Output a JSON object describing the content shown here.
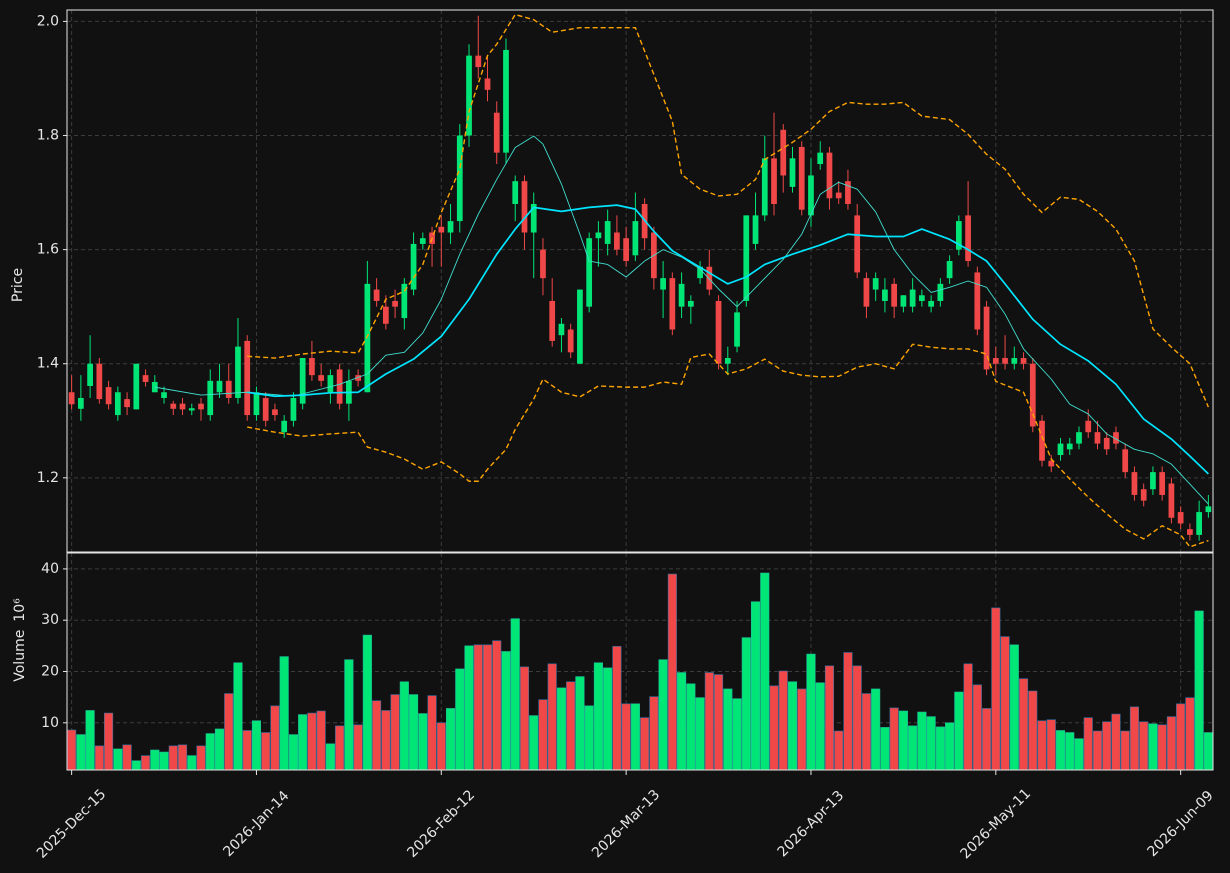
{
  "chart_data": {
    "type": "candlestick",
    "xlim": [
      -0.5,
      123.5
    ],
    "xticks": [
      {
        "value": 0,
        "label": "2025-Dec-15"
      },
      {
        "value": 20,
        "label": "2026-Jan-14"
      },
      {
        "value": 40,
        "label": "2026-Feb-12"
      },
      {
        "value": 60,
        "label": "2026-Mar-13"
      },
      {
        "value": 80,
        "label": "2026-Apr-13"
      },
      {
        "value": 100,
        "label": "2026-May-11"
      },
      {
        "value": 120,
        "label": "2026-Jun-09"
      }
    ],
    "ylabel": "Price",
    "ylim": [
      1.07,
      2.02
    ],
    "yticks": [
      1.2,
      1.4,
      1.6,
      1.8,
      {
        "value": 2,
        "label": "2.0"
      }
    ],
    "grid": true,
    "up_color": "#00e676",
    "down_color": "#f04848",
    "open": [
      1.35,
      1.321,
      1.361,
      1.4,
      1.359,
      1.31,
      1.338,
      1.32,
      1.38,
      1.35,
      1.34,
      1.33,
      1.33,
      1.318,
      1.33,
      1.31,
      1.35,
      1.37,
      1.34,
      1.44,
      1.31,
      1.34,
      1.32,
      1.28,
      1.3,
      1.33,
      1.41,
      1.38,
      1.35,
      1.39,
      1.33,
      1.38,
      1.35,
      1.53,
      1.5,
      1.51,
      1.48,
      1.53,
      1.61,
      1.63,
      1.64,
      1.63,
      1.65,
      1.8,
      1.94,
      1.9,
      1.84,
      1.77,
      1.68,
      1.72,
      1.63,
      1.6,
      1.51,
      1.45,
      1.46,
      1.4,
      1.5,
      1.62,
      1.61,
      1.63,
      1.62,
      1.59,
      1.68,
      1.63,
      1.53,
      1.55,
      1.5,
      1.5,
      1.55,
      1.57,
      1.51,
      1.4,
      1.43,
      1.51,
      1.61,
      1.66,
      1.76,
      1.81,
      1.71,
      1.78,
      1.66,
      1.75,
      1.77,
      1.7,
      1.72,
      1.66,
      1.55,
      1.53,
      1.51,
      1.54,
      1.5,
      1.5,
      1.51,
      1.5,
      1.51,
      1.55,
      1.6,
      1.66,
      1.56,
      1.5,
      1.41,
      1.41,
      1.4,
      1.41,
      1.4,
      1.3,
      1.23,
      1.24,
      1.25,
      1.26,
      1.3,
      1.28,
      1.27,
      1.28,
      1.25,
      1.21,
      1.18,
      1.18,
      1.21,
      1.19,
      1.14,
      1.11,
      1.1,
      1.14
    ],
    "high": [
      1.38,
      1.38,
      1.45,
      1.41,
      1.37,
      1.36,
      1.35,
      1.4,
      1.39,
      1.38,
      1.36,
      1.335,
      1.34,
      1.33,
      1.34,
      1.39,
      1.4,
      1.4,
      1.48,
      1.45,
      1.36,
      1.35,
      1.33,
      1.31,
      1.35,
      1.41,
      1.44,
      1.4,
      1.39,
      1.4,
      1.39,
      1.39,
      1.58,
      1.55,
      1.52,
      1.53,
      1.55,
      1.63,
      1.63,
      1.64,
      1.66,
      1.68,
      1.82,
      1.96,
      2.01,
      1.94,
      1.86,
      1.97,
      1.73,
      1.73,
      1.7,
      1.62,
      1.55,
      1.48,
      1.47,
      1.53,
      1.63,
      1.65,
      1.67,
      1.66,
      1.64,
      1.7,
      1.69,
      1.64,
      1.58,
      1.56,
      1.56,
      1.52,
      1.58,
      1.6,
      1.52,
      1.43,
      1.51,
      1.66,
      1.7,
      1.8,
      1.84,
      1.82,
      1.78,
      1.79,
      1.76,
      1.79,
      1.78,
      1.72,
      1.74,
      1.68,
      1.56,
      1.56,
      1.55,
      1.55,
      1.52,
      1.55,
      1.53,
      1.52,
      1.55,
      1.59,
      1.66,
      1.72,
      1.57,
      1.51,
      1.43,
      1.45,
      1.43,
      1.42,
      1.41,
      1.31,
      1.24,
      1.27,
      1.27,
      1.29,
      1.32,
      1.3,
      1.28,
      1.29,
      1.26,
      1.22,
      1.19,
      1.22,
      1.22,
      1.2,
      1.15,
      1.12,
      1.16,
      1.17
    ],
    "low": [
      1.32,
      1.3,
      1.34,
      1.33,
      1.32,
      1.3,
      1.31,
      1.32,
      1.36,
      1.35,
      1.33,
      1.31,
      1.31,
      1.31,
      1.3,
      1.3,
      1.34,
      1.33,
      1.33,
      1.3,
      1.3,
      1.29,
      1.3,
      1.27,
      1.29,
      1.32,
      1.37,
      1.36,
      1.33,
      1.32,
      1.3,
      1.36,
      1.35,
      1.5,
      1.46,
      1.48,
      1.46,
      1.52,
      1.6,
      1.57,
      1.57,
      1.61,
      1.63,
      1.78,
      1.9,
      1.86,
      1.75,
      1.75,
      1.65,
      1.6,
      1.55,
      1.52,
      1.43,
      1.42,
      1.41,
      1.4,
      1.49,
      1.57,
      1.59,
      1.59,
      1.57,
      1.58,
      1.6,
      1.53,
      1.48,
      1.45,
      1.48,
      1.47,
      1.54,
      1.52,
      1.39,
      1.38,
      1.42,
      1.5,
      1.6,
      1.65,
      1.66,
      1.7,
      1.7,
      1.66,
      1.64,
      1.74,
      1.67,
      1.68,
      1.67,
      1.55,
      1.48,
      1.51,
      1.49,
      1.48,
      1.49,
      1.49,
      1.5,
      1.49,
      1.5,
      1.54,
      1.59,
      1.57,
      1.45,
      1.38,
      1.38,
      1.39,
      1.39,
      1.39,
      1.28,
      1.22,
      1.21,
      1.23,
      1.24,
      1.25,
      1.27,
      1.25,
      1.24,
      1.25,
      1.2,
      1.16,
      1.15,
      1.17,
      1.16,
      1.12,
      1.11,
      1.09,
      1.09,
      1.13
    ],
    "close": [
      1.329,
      1.34,
      1.4,
      1.338,
      1.329,
      1.35,
      1.324,
      1.4,
      1.368,
      1.368,
      1.35,
      1.321,
      1.32,
      1.322,
      1.32,
      1.37,
      1.37,
      1.34,
      1.43,
      1.31,
      1.35,
      1.3,
      1.31,
      1.3,
      1.34,
      1.41,
      1.38,
      1.37,
      1.38,
      1.33,
      1.37,
      1.37,
      1.54,
      1.51,
      1.47,
      1.5,
      1.54,
      1.61,
      1.62,
      1.61,
      1.63,
      1.65,
      1.8,
      1.94,
      1.92,
      1.88,
      1.77,
      1.95,
      1.72,
      1.63,
      1.68,
      1.55,
      1.44,
      1.47,
      1.42,
      1.53,
      1.62,
      1.63,
      1.65,
      1.6,
      1.58,
      1.65,
      1.62,
      1.55,
      1.55,
      1.46,
      1.54,
      1.51,
      1.57,
      1.53,
      1.4,
      1.41,
      1.49,
      1.66,
      1.66,
      1.76,
      1.68,
      1.73,
      1.76,
      1.67,
      1.73,
      1.77,
      1.69,
      1.69,
      1.68,
      1.56,
      1.5,
      1.55,
      1.53,
      1.5,
      1.52,
      1.53,
      1.52,
      1.51,
      1.54,
      1.58,
      1.65,
      1.58,
      1.46,
      1.39,
      1.4,
      1.4,
      1.41,
      1.4,
      1.29,
      1.23,
      1.22,
      1.26,
      1.26,
      1.28,
      1.28,
      1.26,
      1.25,
      1.26,
      1.21,
      1.17,
      1.16,
      1.21,
      1.17,
      1.13,
      1.12,
      1.1,
      1.14,
      1.15
    ],
    "series": [
      {
        "color": "#40e0d0",
        "width": 0.9,
        "dashed": false,
        "x": [
          9,
          14,
          19,
          24,
          29,
          32,
          34,
          36,
          38,
          40,
          42,
          44,
          46,
          48,
          50,
          51,
          53,
          55,
          56,
          58,
          60,
          62,
          64,
          66,
          68,
          70,
          72,
          75,
          77,
          79,
          81,
          83,
          85,
          87,
          89,
          91,
          93,
          95,
          97,
          99,
          101,
          103,
          106,
          108,
          110,
          112,
          115,
          117,
          119,
          121,
          123
        ],
        "values": [
          1.359,
          1.345,
          1.35,
          1.343,
          1.364,
          1.382,
          1.415,
          1.42,
          1.454,
          1.513,
          1.592,
          1.662,
          1.723,
          1.779,
          1.799,
          1.785,
          1.715,
          1.627,
          1.58,
          1.574,
          1.552,
          1.58,
          1.6,
          1.587,
          1.566,
          1.531,
          1.5,
          1.55,
          1.583,
          1.627,
          1.697,
          1.718,
          1.706,
          1.666,
          1.6,
          1.557,
          1.525,
          1.534,
          1.545,
          1.534,
          1.487,
          1.426,
          1.373,
          1.329,
          1.312,
          1.277,
          1.25,
          1.242,
          1.224,
          1.189,
          1.154
        ]
      },
      {
        "color": "#00e5ff",
        "width": 1.7,
        "dashed": false,
        "x": [
          19,
          22,
          25,
          28,
          31,
          34,
          37,
          40,
          43,
          46,
          48,
          50,
          53,
          56,
          59,
          61,
          63,
          65,
          68,
          71,
          73,
          75,
          78,
          81,
          84,
          87,
          90,
          92,
          95,
          97,
          99,
          101,
          104,
          107,
          110,
          113,
          116,
          119,
          121,
          123
        ],
        "values": [
          1.35,
          1.343,
          1.345,
          1.349,
          1.35,
          1.382,
          1.408,
          1.448,
          1.513,
          1.592,
          1.636,
          1.674,
          1.667,
          1.674,
          1.678,
          1.671,
          1.632,
          1.598,
          1.569,
          1.54,
          1.552,
          1.574,
          1.592,
          1.608,
          1.627,
          1.623,
          1.623,
          1.636,
          1.618,
          1.6,
          1.58,
          1.54,
          1.478,
          1.434,
          1.405,
          1.364,
          1.303,
          1.268,
          1.238,
          1.207
        ]
      },
      {
        "color": "#ffa500",
        "width": 1.4,
        "dashed": true,
        "x": [
          19,
          22,
          25,
          28,
          31,
          32,
          34,
          36,
          38,
          40,
          42,
          43,
          45,
          46,
          48,
          50,
          52,
          55,
          58,
          61,
          63,
          65,
          66,
          68,
          70,
          72,
          74,
          75,
          78,
          80,
          82,
          84,
          86,
          88,
          90,
          92,
          95,
          97,
          99,
          101,
          103,
          105,
          107,
          109,
          111,
          113,
          115,
          117,
          119,
          121,
          123
        ],
        "values": [
          1.413,
          1.41,
          1.417,
          1.422,
          1.419,
          1.448,
          1.513,
          1.527,
          1.574,
          1.665,
          1.741,
          1.842,
          1.94,
          1.96,
          2.012,
          2.003,
          1.981,
          1.989,
          1.989,
          1.989,
          1.907,
          1.825,
          1.732,
          1.706,
          1.694,
          1.697,
          1.723,
          1.758,
          1.788,
          1.811,
          1.842,
          1.858,
          1.855,
          1.855,
          1.858,
          1.834,
          1.828,
          1.802,
          1.767,
          1.741,
          1.697,
          1.665,
          1.692,
          1.688,
          1.667,
          1.636,
          1.58,
          1.461,
          1.429,
          1.4,
          1.324
        ]
      },
      {
        "color": "#ffa500",
        "width": 1.4,
        "dashed": true,
        "x": [
          19,
          22,
          25,
          28,
          31,
          32,
          34,
          36,
          38,
          40,
          42,
          43,
          44,
          45,
          47,
          48,
          50,
          51,
          53,
          55,
          57,
          60,
          62,
          64,
          66,
          67,
          69,
          71,
          73,
          75,
          77,
          79,
          81,
          83,
          85,
          87,
          89,
          91,
          93,
          95,
          97,
          99,
          100,
          103,
          104,
          106,
          108,
          110,
          112,
          114,
          116,
          118,
          120,
          121,
          123
        ],
        "values": [
          1.289,
          1.28,
          1.273,
          1.277,
          1.28,
          1.254,
          1.245,
          1.233,
          1.215,
          1.228,
          1.207,
          1.194,
          1.194,
          1.215,
          1.25,
          1.285,
          1.338,
          1.373,
          1.35,
          1.342,
          1.361,
          1.359,
          1.359,
          1.368,
          1.364,
          1.411,
          1.417,
          1.382,
          1.391,
          1.408,
          1.387,
          1.38,
          1.377,
          1.378,
          1.394,
          1.4,
          1.391,
          1.434,
          1.429,
          1.426,
          1.426,
          1.417,
          1.369,
          1.35,
          1.312,
          1.233,
          1.198,
          1.166,
          1.137,
          1.11,
          1.093,
          1.116,
          1.1,
          1.079,
          1.09
        ]
      }
    ],
    "volume": {
      "ylabel": "Volume",
      "scale_label": "10⁶",
      "ylim": [
        0.8,
        43.1
      ],
      "yticks": [
        10,
        20,
        30,
        40
      ],
      "values": [
        8.6,
        7.7,
        12.4,
        5.5,
        11.9,
        4.9,
        5.7,
        2.6,
        3.6,
        4.7,
        4.3,
        5.5,
        5.7,
        3.6,
        5.5,
        7.9,
        8.8,
        15.7,
        21.7,
        8.5,
        10.4,
        8.1,
        13.3,
        22.9,
        7.7,
        11.6,
        11.9,
        12.3,
        5.9,
        9.4,
        22.3,
        9.6,
        27.1,
        14.3,
        12.4,
        15.5,
        18.0,
        15.5,
        11.8,
        15.3,
        10.0,
        12.8,
        20.5,
        25.0,
        25.2,
        25.2,
        26.0,
        23.9,
        30.3,
        20.9,
        11.4,
        14.5,
        21.5,
        16.8,
        18.0,
        19.0,
        13.3,
        21.7,
        20.7,
        24.9,
        13.7,
        13.7,
        11.0,
        15.1,
        22.3,
        39.0,
        19.8,
        17.6,
        14.9,
        19.8,
        19.4,
        16.6,
        14.7,
        26.6,
        33.6,
        39.2,
        17.2,
        20.1,
        18.0,
        16.6,
        23.4,
        17.8,
        21.1,
        8.4,
        23.7,
        21.1,
        15.7,
        16.6,
        9.1,
        12.9,
        12.3,
        9.4,
        12.1,
        11.2,
        9.2,
        10.0,
        16.0,
        21.5,
        17.4,
        12.8,
        32.4,
        26.8,
        25.2,
        18.6,
        16.2,
        10.4,
        10.6,
        8.5,
        8.1,
        6.9,
        11.0,
        8.4,
        10.2,
        11.7,
        8.4,
        13.1,
        10.2,
        9.8,
        9.6,
        11.2,
        13.7,
        14.9,
        31.8,
        8.1
      ]
    }
  }
}
